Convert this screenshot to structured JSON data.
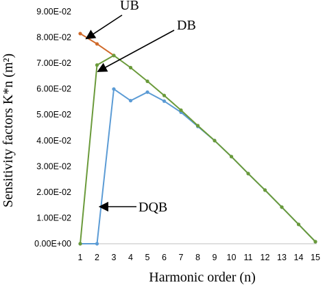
{
  "chart_data": {
    "type": "line",
    "title": "",
    "xlabel": "Harmonic order (n)",
    "ylabel": "Sensitivity factors K*n (m²)",
    "x": [
      1,
      2,
      3,
      4,
      5,
      6,
      7,
      8,
      9,
      10,
      11,
      12,
      13,
      14,
      15
    ],
    "xlim": [
      1,
      15
    ],
    "ylim": [
      0,
      0.09
    ],
    "xticks": [
      "1",
      "2",
      "3",
      "4",
      "5",
      "6",
      "7",
      "8",
      "9",
      "10",
      "11",
      "12",
      "13",
      "14",
      "15"
    ],
    "yticks": [
      "0.00E+00",
      "1.00E-02",
      "2.00E-02",
      "3.00E-02",
      "4.00E-02",
      "5.00E-02",
      "6.00E-02",
      "7.00E-02",
      "8.00E-02",
      "9.00E-02"
    ],
    "grid": false,
    "legend": "none",
    "series": [
      {
        "name": "UB",
        "color": "#d06a2a",
        "x": [
          1,
          2,
          3
        ],
        "values": [
          0.0815,
          0.0775,
          0.073
        ]
      },
      {
        "name": "DQB",
        "color": "#5b9bd5",
        "x": [
          1,
          2,
          3,
          4,
          5,
          6,
          7,
          8,
          9,
          10,
          11,
          12,
          13,
          14,
          15
        ],
        "values": [
          0.0,
          0.0,
          0.06,
          0.0555,
          0.0588,
          0.0553,
          0.051,
          0.0455,
          0.04,
          0.0338,
          0.0272,
          0.0208,
          0.0142,
          0.0075,
          0.0008
        ]
      },
      {
        "name": "DB",
        "color": "#6a9a3a",
        "x": [
          1,
          2,
          3,
          4,
          5,
          6,
          7,
          8,
          9,
          10,
          11,
          12,
          13,
          14,
          15
        ],
        "values": [
          0.0,
          0.0693,
          0.073,
          0.0683,
          0.063,
          0.0575,
          0.0518,
          0.0458,
          0.04,
          0.0338,
          0.0272,
          0.0208,
          0.0142,
          0.0075,
          0.0008
        ]
      }
    ],
    "annotations": [
      {
        "text": "UB",
        "points_to": {
          "x": 1.3,
          "y": 0.0795
        }
      },
      {
        "text": "DB",
        "points_to": {
          "x": 2.0,
          "y": 0.0693
        }
      },
      {
        "text": "DQB",
        "points_to": {
          "x": 2.1,
          "y": 0.0
        }
      }
    ]
  }
}
